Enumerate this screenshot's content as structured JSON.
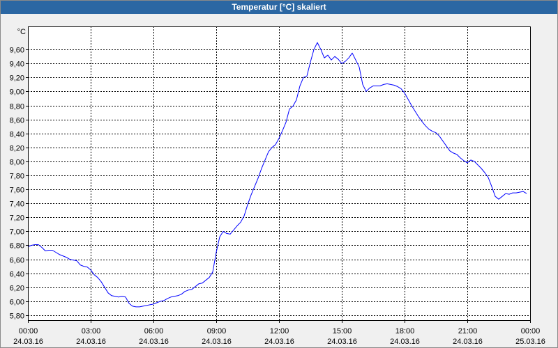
{
  "colors": {
    "title_bar": "#2b67a3",
    "title_text": "#ffffff",
    "background": "#f0f0f0",
    "plot_background": "#ffffff",
    "grid": "#000000",
    "axis": "#000000"
  },
  "chart_data": {
    "type": "line",
    "title": "Temperatur [°C] skaliert",
    "ylabel": "°C",
    "xlim": [
      "24.03.16 00:00",
      "25.03.16 00:00"
    ],
    "ylim": [
      5.73,
      9.93
    ],
    "grid": true,
    "y_ticks": [
      "5,80",
      "6,00",
      "6,20",
      "6,40",
      "6,60",
      "6,80",
      "7,00",
      "7,20",
      "7,40",
      "7,60",
      "7,80",
      "8,00",
      "8,20",
      "8,40",
      "8,60",
      "8,80",
      "9,00",
      "9,20",
      "9,40",
      "9,60"
    ],
    "x_ticks": [
      {
        "time": "00:00",
        "date": "24.03.16"
      },
      {
        "time": "03:00",
        "date": "24.03.16"
      },
      {
        "time": "06:00",
        "date": "24.03.16"
      },
      {
        "time": "09:00",
        "date": "24.03.16"
      },
      {
        "time": "12:00",
        "date": "24.03.16"
      },
      {
        "time": "15:00",
        "date": "24.03.16"
      },
      {
        "time": "18:00",
        "date": "24.03.16"
      },
      {
        "time": "21:00",
        "date": "24.03.16"
      },
      {
        "time": "00:00",
        "date": "25.03.16"
      }
    ],
    "series": [
      {
        "color": "#0000ff",
        "x": [
          "24.03.16 00:00",
          "24.03.16 00:10",
          "24.03.16 00:20",
          "24.03.16 00:30",
          "24.03.16 00:40",
          "24.03.16 00:50",
          "24.03.16 01:00",
          "24.03.16 01:10",
          "24.03.16 01:20",
          "24.03.16 01:30",
          "24.03.16 01:40",
          "24.03.16 01:50",
          "24.03.16 02:00",
          "24.03.16 02:10",
          "24.03.16 02:20",
          "24.03.16 02:30",
          "24.03.16 02:40",
          "24.03.16 02:50",
          "24.03.16 03:00",
          "24.03.16 03:10",
          "24.03.16 03:20",
          "24.03.16 03:30",
          "24.03.16 03:40",
          "24.03.16 03:50",
          "24.03.16 04:00",
          "24.03.16 04:10",
          "24.03.16 04:20",
          "24.03.16 04:30",
          "24.03.16 04:40",
          "24.03.16 04:50",
          "24.03.16 05:00",
          "24.03.16 05:10",
          "24.03.16 05:20",
          "24.03.16 05:30",
          "24.03.16 05:40",
          "24.03.16 05:50",
          "24.03.16 06:00",
          "24.03.16 06:10",
          "24.03.16 06:20",
          "24.03.16 06:30",
          "24.03.16 06:40",
          "24.03.16 06:50",
          "24.03.16 07:00",
          "24.03.16 07:10",
          "24.03.16 07:20",
          "24.03.16 07:30",
          "24.03.16 07:40",
          "24.03.16 07:50",
          "24.03.16 08:00",
          "24.03.16 08:10",
          "24.03.16 08:20",
          "24.03.16 08:30",
          "24.03.16 08:40",
          "24.03.16 08:50",
          "24.03.16 09:00",
          "24.03.16 09:10",
          "24.03.16 09:20",
          "24.03.16 09:30",
          "24.03.16 09:40",
          "24.03.16 09:50",
          "24.03.16 10:00",
          "24.03.16 10:10",
          "24.03.16 10:20",
          "24.03.16 10:30",
          "24.03.16 10:40",
          "24.03.16 10:50",
          "24.03.16 11:00",
          "24.03.16 11:10",
          "24.03.16 11:20",
          "24.03.16 11:30",
          "24.03.16 11:40",
          "24.03.16 11:50",
          "24.03.16 12:00",
          "24.03.16 12:10",
          "24.03.16 12:20",
          "24.03.16 12:30",
          "24.03.16 12:40",
          "24.03.16 12:50",
          "24.03.16 13:00",
          "24.03.16 13:10",
          "24.03.16 13:20",
          "24.03.16 13:30",
          "24.03.16 13:40",
          "24.03.16 13:50",
          "24.03.16 14:00",
          "24.03.16 14:10",
          "24.03.16 14:20",
          "24.03.16 14:30",
          "24.03.16 14:40",
          "24.03.16 14:50",
          "24.03.16 15:00",
          "24.03.16 15:10",
          "24.03.16 15:20",
          "24.03.16 15:30",
          "24.03.16 15:40",
          "24.03.16 15:50",
          "24.03.16 16:00",
          "24.03.16 16:10",
          "24.03.16 16:20",
          "24.03.16 16:30",
          "24.03.16 16:40",
          "24.03.16 16:50",
          "24.03.16 17:00",
          "24.03.16 17:10",
          "24.03.16 17:20",
          "24.03.16 17:30",
          "24.03.16 17:40",
          "24.03.16 17:50",
          "24.03.16 18:00",
          "24.03.16 18:10",
          "24.03.16 18:20",
          "24.03.16 18:30",
          "24.03.16 18:40",
          "24.03.16 18:50",
          "24.03.16 19:00",
          "24.03.16 19:10",
          "24.03.16 19:20",
          "24.03.16 19:30",
          "24.03.16 19:40",
          "24.03.16 19:50",
          "24.03.16 20:00",
          "24.03.16 20:10",
          "24.03.16 20:20",
          "24.03.16 20:30",
          "24.03.16 20:40",
          "24.03.16 20:50",
          "24.03.16 21:00",
          "24.03.16 21:10",
          "24.03.16 21:20",
          "24.03.16 21:30",
          "24.03.16 21:40",
          "24.03.16 21:50",
          "24.03.16 22:00",
          "24.03.16 22:10",
          "24.03.16 22:20",
          "24.03.16 22:30",
          "24.03.16 22:40",
          "24.03.16 22:50",
          "24.03.16 23:00",
          "24.03.16 23:10",
          "24.03.16 23:20",
          "24.03.16 23:30",
          "24.03.16 23:40",
          "24.03.16 23:50"
        ],
        "values": [
          6.78,
          6.8,
          6.81,
          6.81,
          6.77,
          6.72,
          6.73,
          6.73,
          6.7,
          6.67,
          6.65,
          6.63,
          6.6,
          6.59,
          6.58,
          6.52,
          6.5,
          6.49,
          6.45,
          6.38,
          6.34,
          6.28,
          6.2,
          6.12,
          6.08,
          6.07,
          6.06,
          6.07,
          6.06,
          5.97,
          5.93,
          5.92,
          5.92,
          5.93,
          5.94,
          5.95,
          5.96,
          5.98,
          6.0,
          6.01,
          6.04,
          6.06,
          6.07,
          6.08,
          6.1,
          6.14,
          6.16,
          6.17,
          6.21,
          6.25,
          6.26,
          6.3,
          6.34,
          6.42,
          6.7,
          6.92,
          7.0,
          6.97,
          6.96,
          7.02,
          7.08,
          7.13,
          7.22,
          7.38,
          7.52,
          7.64,
          7.76,
          7.9,
          8.02,
          8.14,
          8.2,
          8.24,
          8.33,
          8.44,
          8.56,
          8.75,
          8.79,
          8.88,
          9.08,
          9.2,
          9.22,
          9.42,
          9.6,
          9.7,
          9.6,
          9.48,
          9.52,
          9.45,
          9.5,
          9.46,
          9.4,
          9.43,
          9.48,
          9.55,
          9.45,
          9.35,
          9.1,
          9.0,
          9.05,
          9.08,
          9.08,
          9.08,
          9.1,
          9.11,
          9.1,
          9.09,
          9.07,
          9.04,
          8.98,
          8.89,
          8.8,
          8.72,
          8.64,
          8.57,
          8.51,
          8.46,
          8.43,
          8.41,
          8.36,
          8.29,
          8.22,
          8.15,
          8.12,
          8.1,
          8.05,
          8.01,
          7.98,
          8.02,
          8.0,
          7.95,
          7.9,
          7.84,
          7.77,
          7.64,
          7.5,
          7.46,
          7.5,
          7.54,
          7.53,
          7.55,
          7.55,
          7.56,
          7.57,
          7.54
        ]
      }
    ]
  }
}
